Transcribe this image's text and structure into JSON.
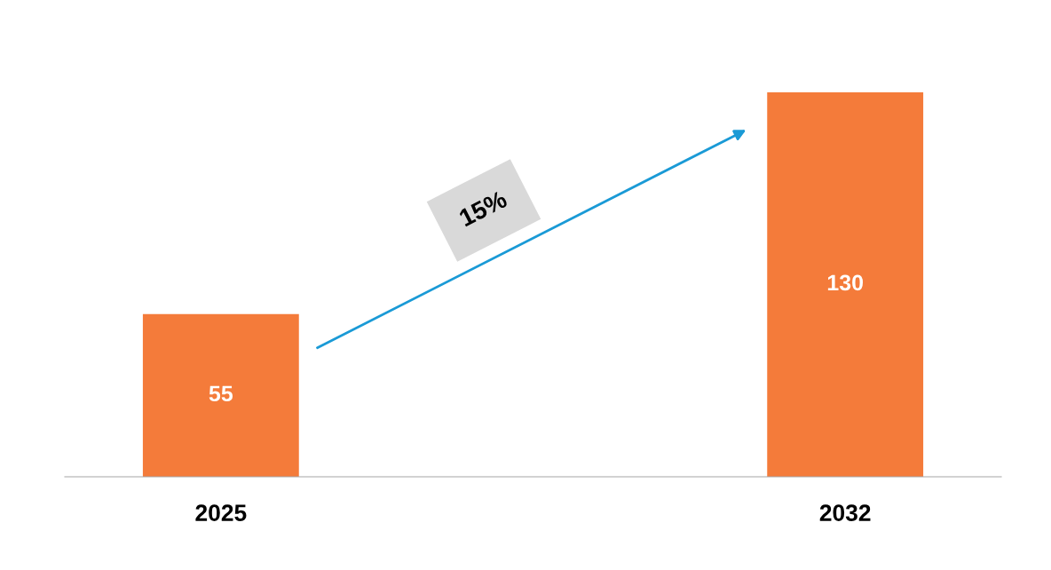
{
  "chart_data": {
    "type": "bar",
    "categories": [
      "2025",
      "2032"
    ],
    "values": [
      55,
      130
    ],
    "color": "#f47b3a",
    "data_labels": true,
    "grid": false,
    "legend": false,
    "tick_labels": "x",
    "annotations": [
      "15%"
    ]
  }
}
